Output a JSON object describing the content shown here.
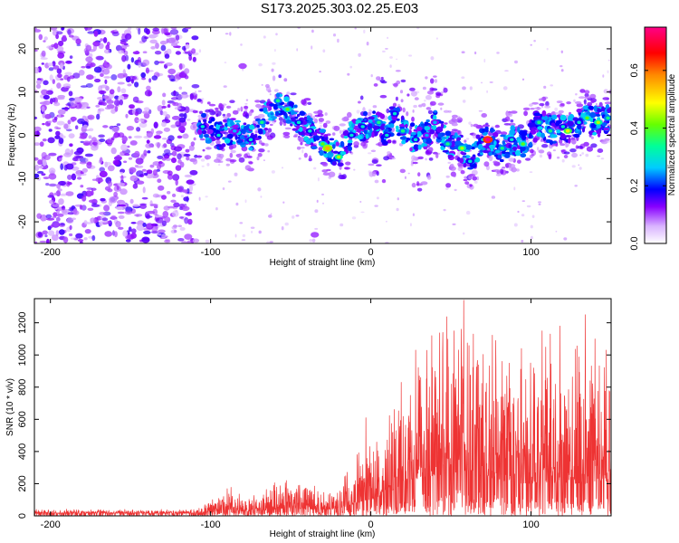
{
  "title": "S173.2025.303.02.25.E03",
  "chart_data": [
    {
      "type": "heatmap",
      "name": "spectrogram",
      "xlabel": "Height of straight line (km)",
      "ylabel": "Frequency (Hz)",
      "xlim": [
        -210,
        150
      ],
      "ylim": [
        -25,
        25
      ],
      "xticks": [
        -200,
        -100,
        0,
        100
      ],
      "yticks": [
        -20,
        -10,
        0,
        10,
        20
      ],
      "colorbar": {
        "label": "Normalized spectral amplitude",
        "range": [
          0.0,
          0.75
        ],
        "ticks": [
          0.0,
          0.2,
          0.4,
          0.6
        ]
      },
      "blobs": [
        {
          "x": -80,
          "y": 16,
          "v": 0.1
        },
        {
          "x": -35,
          "y": -23,
          "v": 0.1
        },
        {
          "x": -105,
          "y": 2,
          "v": 0.3
        },
        {
          "x": -95,
          "y": 0,
          "v": 0.3
        },
        {
          "x": -85,
          "y": 1,
          "v": 0.25
        },
        {
          "x": -75,
          "y": -1,
          "v": 0.3
        },
        {
          "x": -68,
          "y": 3,
          "v": 0.35
        },
        {
          "x": -58,
          "y": 8,
          "v": 0.35
        },
        {
          "x": -52,
          "y": 6,
          "v": 0.4
        },
        {
          "x": -45,
          "y": 3,
          "v": 0.3
        },
        {
          "x": -38,
          "y": 1,
          "v": 0.3
        },
        {
          "x": -30,
          "y": -2,
          "v": 0.4
        },
        {
          "x": -27,
          "y": -3,
          "v": 0.55
        },
        {
          "x": -20,
          "y": -5,
          "v": 0.45
        },
        {
          "x": -12,
          "y": 0,
          "v": 0.3
        },
        {
          "x": -5,
          "y": 2,
          "v": 0.3
        },
        {
          "x": 5,
          "y": 3,
          "v": 0.35
        },
        {
          "x": 10,
          "y": 0,
          "v": 0.3
        },
        {
          "x": 15,
          "y": 5,
          "v": 0.3
        },
        {
          "x": 20,
          "y": 1,
          "v": 0.35
        },
        {
          "x": 28,
          "y": -1,
          "v": 0.3
        },
        {
          "x": 35,
          "y": 0,
          "v": 0.25
        },
        {
          "x": 40,
          "y": 3,
          "v": 0.25
        },
        {
          "x": 48,
          "y": -2,
          "v": 0.35
        },
        {
          "x": 57,
          "y": -3,
          "v": 0.45
        },
        {
          "x": 62,
          "y": -6,
          "v": 0.3
        },
        {
          "x": 70,
          "y": -1,
          "v": 0.3
        },
        {
          "x": 73,
          "y": -1,
          "v": 0.75
        },
        {
          "x": 82,
          "y": -3,
          "v": 0.35
        },
        {
          "x": 88,
          "y": -1,
          "v": 0.3
        },
        {
          "x": 95,
          "y": -2,
          "v": 0.4
        },
        {
          "x": 105,
          "y": 3,
          "v": 0.35
        },
        {
          "x": 112,
          "y": 1,
          "v": 0.35
        },
        {
          "x": 120,
          "y": 2,
          "v": 0.3
        },
        {
          "x": 123,
          "y": 1,
          "v": 0.5
        },
        {
          "x": 130,
          "y": 3,
          "v": 0.3
        },
        {
          "x": 135,
          "y": 4,
          "v": 0.4
        },
        {
          "x": 142,
          "y": 3,
          "v": 0.45
        },
        {
          "x": 148,
          "y": 4,
          "v": 0.35
        }
      ]
    },
    {
      "type": "line",
      "name": "snr",
      "xlabel": "Height of straight line (km)",
      "ylabel": "SNR (10 * v/v)",
      "xlim": [
        -210,
        150
      ],
      "ylim": [
        0,
        1350
      ],
      "xticks": [
        -200,
        -100,
        0,
        100
      ],
      "yticks": [
        0,
        200,
        400,
        600,
        800,
        1000,
        1200
      ],
      "color": "#ee3333",
      "envelope": [
        {
          "x": -210,
          "base": 15,
          "amp": 25
        },
        {
          "x": -110,
          "base": 15,
          "amp": 25
        },
        {
          "x": -100,
          "base": 20,
          "amp": 80
        },
        {
          "x": -88,
          "base": 40,
          "amp": 150
        },
        {
          "x": -78,
          "base": 25,
          "amp": 70
        },
        {
          "x": -60,
          "base": 40,
          "amp": 170
        },
        {
          "x": -50,
          "base": 50,
          "amp": 210
        },
        {
          "x": -40,
          "base": 40,
          "amp": 160
        },
        {
          "x": -25,
          "base": 40,
          "amp": 110
        },
        {
          "x": -15,
          "base": 60,
          "amp": 250
        },
        {
          "x": -5,
          "base": 90,
          "amp": 400
        },
        {
          "x": 0,
          "base": 100,
          "amp": 320
        },
        {
          "x": 12,
          "base": 150,
          "amp": 520
        },
        {
          "x": 25,
          "base": 220,
          "amp": 700
        },
        {
          "x": 40,
          "base": 250,
          "amp": 900
        },
        {
          "x": 58,
          "base": 280,
          "amp": 1000
        },
        {
          "x": 75,
          "base": 230,
          "amp": 950
        },
        {
          "x": 95,
          "base": 200,
          "amp": 900
        },
        {
          "x": 115,
          "base": 200,
          "amp": 850
        },
        {
          "x": 135,
          "base": 200,
          "amp": 900
        },
        {
          "x": 150,
          "base": 220,
          "amp": 800
        }
      ],
      "peaks": [
        {
          "x": -3,
          "y": 610
        },
        {
          "x": 19,
          "y": 830
        },
        {
          "x": 28,
          "y": 1030
        },
        {
          "x": 38,
          "y": 1120
        },
        {
          "x": 45,
          "y": 1140
        },
        {
          "x": 52,
          "y": 1150
        },
        {
          "x": 58,
          "y": 1340
        },
        {
          "x": 64,
          "y": 1130
        },
        {
          "x": 78,
          "y": 1090
        },
        {
          "x": 82,
          "y": 960
        },
        {
          "x": 94,
          "y": 1040
        },
        {
          "x": 107,
          "y": 1150
        },
        {
          "x": 112,
          "y": 1130
        },
        {
          "x": 118,
          "y": 1180
        },
        {
          "x": 134,
          "y": 1250
        },
        {
          "x": 140,
          "y": 1100
        },
        {
          "x": 147,
          "y": 1030
        }
      ]
    }
  ]
}
